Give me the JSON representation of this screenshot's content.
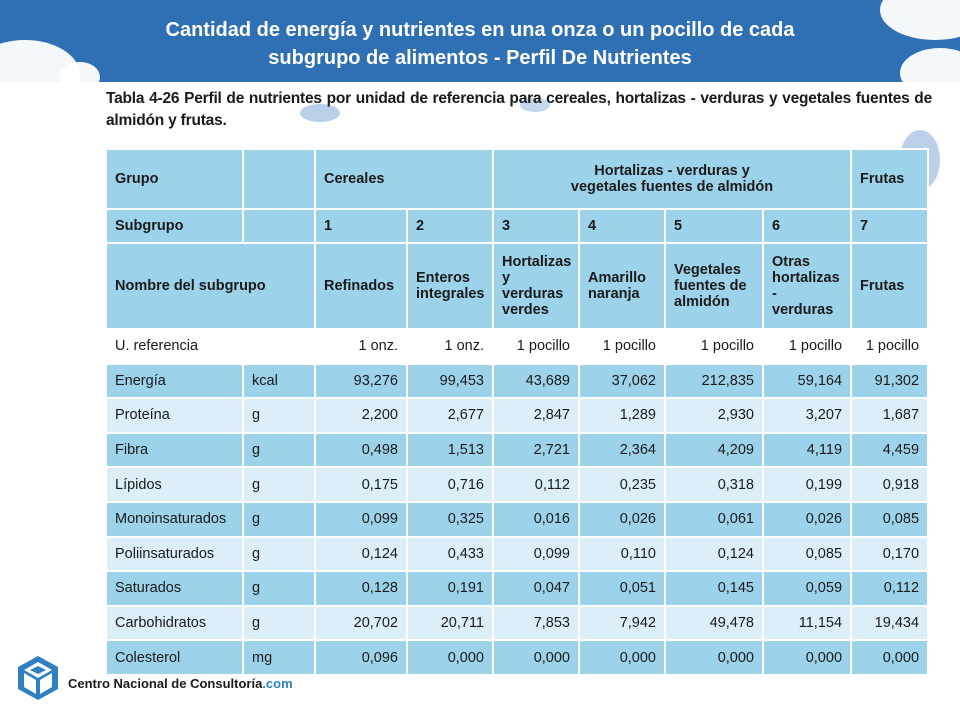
{
  "title_line1": "Cantidad de energía y nutrientes en una onza o un pocillo de cada",
  "title_line2": "subgrupo de alimentos - Perfil De Nutrientes",
  "caption": "Tabla 4-26 Perfil de nutrientes por unidad de referencia para cereales, hortalizas - verduras y vegetales fuentes de almidón y frutas.",
  "header": {
    "grupo": "Grupo",
    "cereales": "Cereales",
    "hortalizas_line1": "Hortalizas - verduras y",
    "hortalizas_line2": "vegetales fuentes de almidón",
    "frutas": "Frutas",
    "subgrupo": "Subgrupo",
    "subgroup_numbers": [
      "1",
      "2",
      "3",
      "4",
      "5",
      "6",
      "7"
    ],
    "nombre_subgrupo": "Nombre del subgrupo",
    "subgroup_names": [
      [
        "Refinados"
      ],
      [
        "Enteros",
        "integrales"
      ],
      [
        "Hortalizas",
        "y verduras",
        "verdes"
      ],
      [
        "Amarillo",
        "naranja"
      ],
      [
        "Vegetales",
        "fuentes de",
        "almidón"
      ],
      [
        "Otras",
        "hortalizas",
        "- verduras"
      ],
      [
        "Frutas"
      ]
    ]
  },
  "rows": [
    {
      "label": "U. referencia",
      "unit": "",
      "values": [
        "1 onz.",
        "1 onz.",
        "1 pocillo",
        "1 pocillo",
        "1 pocillo",
        "1 pocillo",
        "1 pocillo"
      ]
    },
    {
      "label": "Energía",
      "unit": "kcal",
      "values": [
        "93,276",
        "99,453",
        "43,689",
        "37,062",
        "212,835",
        "59,164",
        "91,302"
      ]
    },
    {
      "label": "Proteína",
      "unit": "g",
      "values": [
        "2,200",
        "2,677",
        "2,847",
        "1,289",
        "2,930",
        "3,207",
        "1,687"
      ]
    },
    {
      "label": "Fibra",
      "unit": "g",
      "values": [
        "0,498",
        "1,513",
        "2,721",
        "2,364",
        "4,209",
        "4,119",
        "4,459"
      ]
    },
    {
      "label": "Lípidos",
      "unit": "g",
      "values": [
        "0,175",
        "0,716",
        "0,112",
        "0,235",
        "0,318",
        "0,199",
        "0,918"
      ]
    },
    {
      "label": "Monoinsaturados",
      "unit": "g",
      "values": [
        "0,099",
        "0,325",
        "0,016",
        "0,026",
        "0,061",
        "0,026",
        "0,085"
      ]
    },
    {
      "label": "Poliinsaturados",
      "unit": "g",
      "values": [
        "0,124",
        "0,433",
        "0,099",
        "0,110",
        "0,124",
        "0,085",
        "0,170"
      ]
    },
    {
      "label": "Saturados",
      "unit": "g",
      "values": [
        "0,128",
        "0,191",
        "0,047",
        "0,051",
        "0,145",
        "0,059",
        "0,112"
      ]
    },
    {
      "label": "Carbohidratos",
      "unit": "g",
      "values": [
        "20,702",
        "20,711",
        "7,853",
        "7,942",
        "49,478",
        "11,154",
        "19,434"
      ]
    },
    {
      "label": "Colesterol",
      "unit": "mg",
      "values": [
        "0,096",
        "0,000",
        "0,000",
        "0,000",
        "0,000",
        "0,000",
        "0,000"
      ]
    }
  ],
  "logo": {
    "name": "Centro Nacional de Consultoría",
    "suffix": ".com"
  },
  "colors": {
    "banner": "#2f6fb4",
    "header_cells": "#9cd3ea",
    "light_cells": "#dceff8"
  }
}
